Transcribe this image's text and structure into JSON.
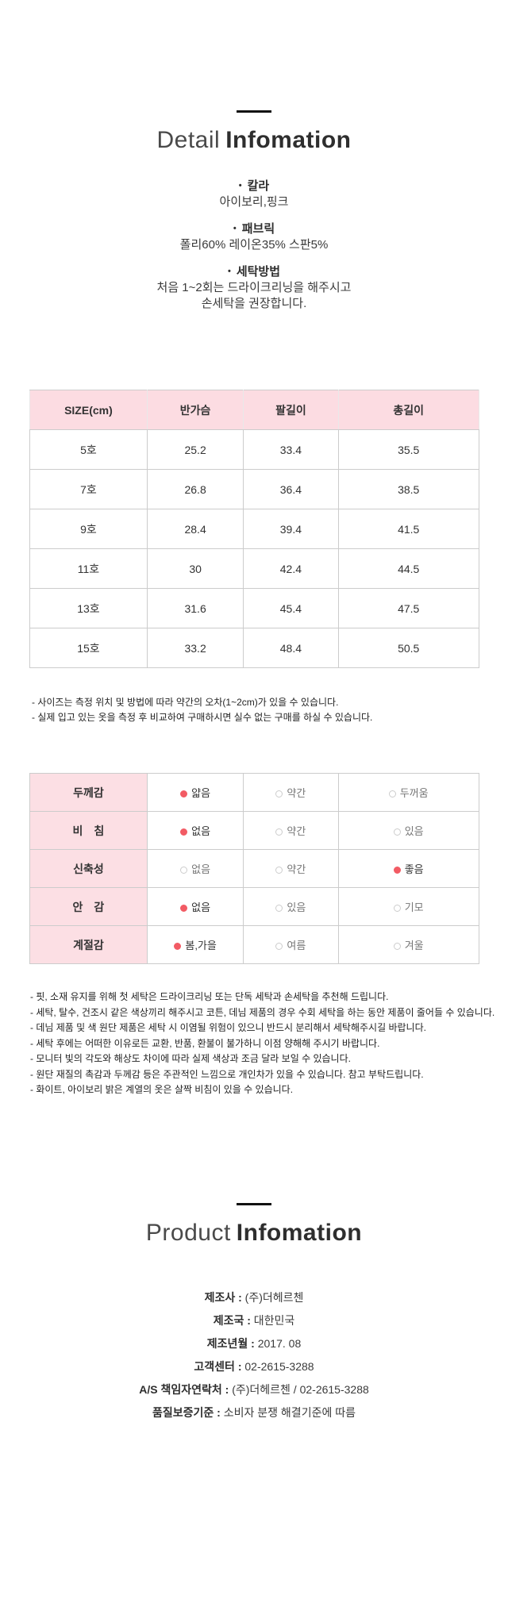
{
  "detail_section": {
    "title_light": "Detail",
    "title_bold": "Infomation",
    "bullet_glyph": "•",
    "bullets": [
      {
        "label": "칼라",
        "lines": [
          "아이보리,핑크"
        ]
      },
      {
        "label": "패브릭",
        "lines": [
          "폴리60% 레이온35% 스판5%"
        ]
      },
      {
        "label": "세탁방법",
        "lines": [
          "처음 1~2회는 드라이크리닝을 해주시고",
          "손세탁을 권장합니다."
        ]
      }
    ]
  },
  "size_table": {
    "headers": [
      "SIZE(cm)",
      "반가슴",
      "팔길이",
      "총길이"
    ],
    "rows": [
      [
        "5호",
        "25.2",
        "33.4",
        "35.5"
      ],
      [
        "7호",
        "26.8",
        "36.4",
        "38.5"
      ],
      [
        "9호",
        "28.4",
        "39.4",
        "41.5"
      ],
      [
        "11호",
        "30",
        "42.4",
        "44.5"
      ],
      [
        "13호",
        "31.6",
        "45.4",
        "47.5"
      ],
      [
        "15호",
        "33.2",
        "48.4",
        "50.5"
      ]
    ],
    "notes": [
      "- 사이즈는 측정 위치 및 방법에 따라 약간의 오차(1~2cm)가 있을 수 있습니다.",
      "- 실제 입고 있는 옷을 측정 후 비교하여 구매하시면 실수 없는 구매를 하실 수 있습니다."
    ]
  },
  "attribute_table": {
    "rows": [
      {
        "label": "두께감",
        "options": [
          {
            "text": "얇음",
            "selected": true
          },
          {
            "text": "약간",
            "selected": false
          },
          {
            "text": "두꺼움",
            "selected": false
          }
        ]
      },
      {
        "label": "비　침",
        "options": [
          {
            "text": "없음",
            "selected": true
          },
          {
            "text": "약간",
            "selected": false
          },
          {
            "text": "있음",
            "selected": false
          }
        ]
      },
      {
        "label": "신축성",
        "options": [
          {
            "text": "없음",
            "selected": false
          },
          {
            "text": "약간",
            "selected": false
          },
          {
            "text": "좋음",
            "selected": true
          }
        ]
      },
      {
        "label": "안　감",
        "options": [
          {
            "text": "없음",
            "selected": true
          },
          {
            "text": "있음",
            "selected": false
          },
          {
            "text": "기모",
            "selected": false
          }
        ]
      },
      {
        "label": "계절감",
        "options": [
          {
            "text": "봄,가을",
            "selected": true
          },
          {
            "text": "여름",
            "selected": false
          },
          {
            "text": "겨울",
            "selected": false
          }
        ]
      }
    ]
  },
  "care_notes": [
    "- 핏, 소재 유지를 위해 첫 세탁은 드라이크리닝 또는 단독 세탁과 손세탁을 추천해 드립니다.",
    "- 세탁, 탈수, 건조시 같은 색상끼리 해주시고 코튼, 데님 제품의 경우 수회 세탁을 하는 동안 제품이 줄어들 수 있습니다.",
    "- 데님 제품 및 색 원단 제품은 세탁 시 이염될 위험이 있으니 반드시 분리해서 세탁해주시길 바랍니다.",
    "- 세탁 후에는 어떠한 이유로든 교환, 반품, 환불이 불가하니 이점 양해해 주시기 바랍니다.",
    "- 모니터 빛의 각도와 해상도 차이에 따라 실제 색상과 조금 달라 보일 수 있습니다.",
    "- 원단 재질의 촉감과 두께감 등은 주관적인 느낌으로 개인차가 있을 수 있습니다. 참고 부탁드립니다.",
    "- 화이트, 아이보리 밝은 계열의 옷은 살짝 비침이 있을 수 있습니다."
  ],
  "product_section": {
    "title_light": "Product",
    "title_bold": "Infomation",
    "separator": " : ",
    "items": [
      {
        "label": "제조사",
        "value": "(주)더헤르첸"
      },
      {
        "label": "제조국",
        "value": "대한민국"
      },
      {
        "label": "제조년월",
        "value": "2017. 08"
      },
      {
        "label": "고객센터",
        "value": "02-2615-3288"
      },
      {
        "label": "A/S 책임자연락처",
        "value": "(주)더헤르첸 / 02-2615-3288"
      },
      {
        "label": "품질보증기준",
        "value": "소비자 분쟁 해결기준에 따름"
      }
    ]
  },
  "colors": {
    "table_header_pink": "#fcdce2",
    "attr_label_pink": "#fcdfe4",
    "selected_dot_red": "#f25b64",
    "border_gray": "#cccccc",
    "text_dark": "#333333"
  }
}
